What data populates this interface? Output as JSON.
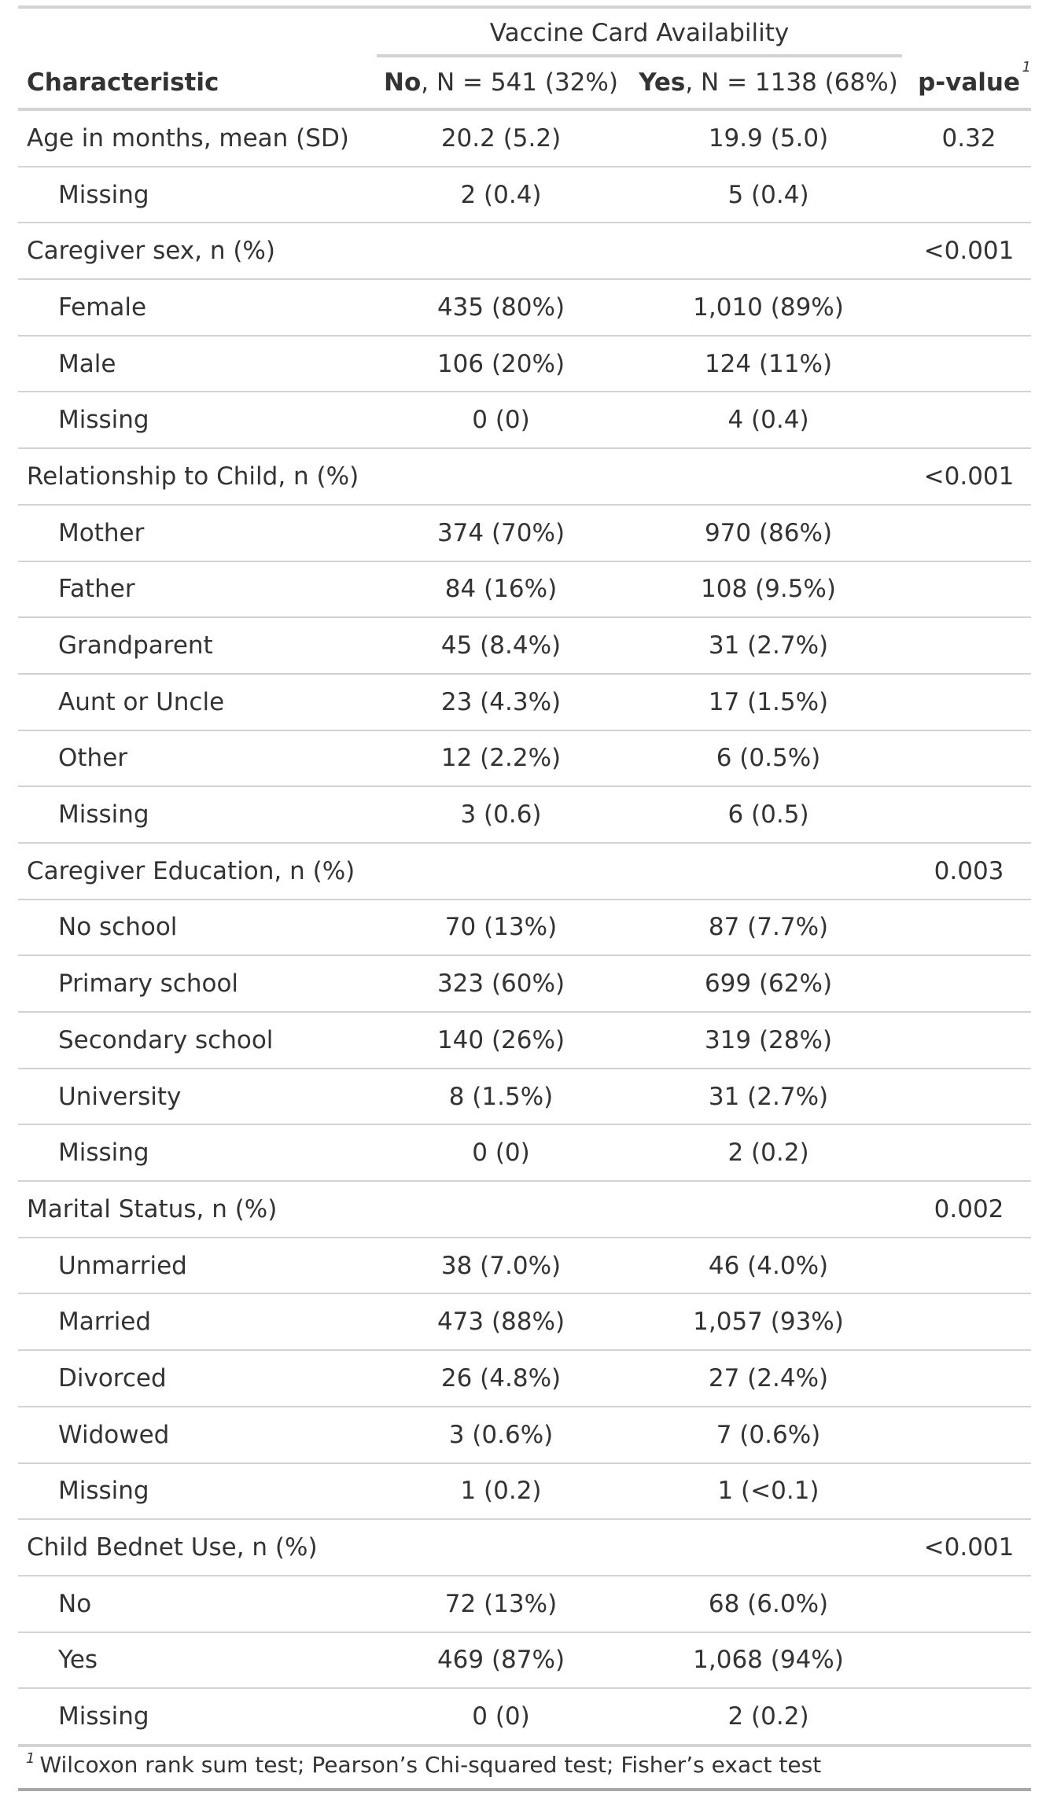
{
  "table": {
    "spanner": "Vaccine Card Availability",
    "headers": {
      "characteristic": "Characteristic",
      "no_bold": "No",
      "no_rest": ", N = 541 (32%)",
      "yes_bold": "Yes",
      "yes_rest": ", N = 1138 (68%)",
      "pvalue": "p-value",
      "pvalue_mark": "1"
    },
    "rows": [
      {
        "label": "Age in months, mean (SD)",
        "no": "20.2 (5.2)",
        "yes": "19.9 (5.0)",
        "p": "0.32",
        "level": "header"
      },
      {
        "label": "Missing",
        "no": "2 (0.4)",
        "yes": "5 (0.4)",
        "p": "",
        "level": "sub"
      },
      {
        "label": "Caregiver sex, n (%)",
        "no": "",
        "yes": "",
        "p": "<0.001",
        "level": "header"
      },
      {
        "label": "Female",
        "no": "435 (80%)",
        "yes": "1,010 (89%)",
        "p": "",
        "level": "sub"
      },
      {
        "label": "Male",
        "no": "106 (20%)",
        "yes": "124 (11%)",
        "p": "",
        "level": "sub"
      },
      {
        "label": "Missing",
        "no": "0 (0)",
        "yes": "4 (0.4)",
        "p": "",
        "level": "sub"
      },
      {
        "label": "Relationship to Child, n (%)",
        "no": "",
        "yes": "",
        "p": "<0.001",
        "level": "header"
      },
      {
        "label": "Mother",
        "no": "374 (70%)",
        "yes": "970 (86%)",
        "p": "",
        "level": "sub"
      },
      {
        "label": "Father",
        "no": "84 (16%)",
        "yes": "108 (9.5%)",
        "p": "",
        "level": "sub"
      },
      {
        "label": "Grandparent",
        "no": "45 (8.4%)",
        "yes": "31 (2.7%)",
        "p": "",
        "level": "sub"
      },
      {
        "label": "Aunt or Uncle",
        "no": "23 (4.3%)",
        "yes": "17 (1.5%)",
        "p": "",
        "level": "sub"
      },
      {
        "label": "Other",
        "no": "12 (2.2%)",
        "yes": "6 (0.5%)",
        "p": "",
        "level": "sub"
      },
      {
        "label": "Missing",
        "no": "3 (0.6)",
        "yes": "6 (0.5)",
        "p": "",
        "level": "sub"
      },
      {
        "label": "Caregiver Education, n (%)",
        "no": "",
        "yes": "",
        "p": "0.003",
        "level": "header"
      },
      {
        "label": "No school",
        "no": "70 (13%)",
        "yes": "87 (7.7%)",
        "p": "",
        "level": "sub"
      },
      {
        "label": "Primary school",
        "no": "323 (60%)",
        "yes": "699 (62%)",
        "p": "",
        "level": "sub"
      },
      {
        "label": "Secondary school",
        "no": "140 (26%)",
        "yes": "319 (28%)",
        "p": "",
        "level": "sub"
      },
      {
        "label": "University",
        "no": "8 (1.5%)",
        "yes": "31 (2.7%)",
        "p": "",
        "level": "sub"
      },
      {
        "label": "Missing",
        "no": "0 (0)",
        "yes": "2 (0.2)",
        "p": "",
        "level": "sub"
      },
      {
        "label": "Marital Status, n (%)",
        "no": "",
        "yes": "",
        "p": "0.002",
        "level": "header"
      },
      {
        "label": "Unmarried",
        "no": "38 (7.0%)",
        "yes": "46 (4.0%)",
        "p": "",
        "level": "sub"
      },
      {
        "label": "Married",
        "no": "473 (88%)",
        "yes": "1,057 (93%)",
        "p": "",
        "level": "sub"
      },
      {
        "label": "Divorced",
        "no": "26 (4.8%)",
        "yes": "27 (2.4%)",
        "p": "",
        "level": "sub"
      },
      {
        "label": "Widowed",
        "no": "3 (0.6%)",
        "yes": "7 (0.6%)",
        "p": "",
        "level": "sub"
      },
      {
        "label": "Missing",
        "no": "1 (0.2)",
        "yes": "1 (<0.1)",
        "p": "",
        "level": "sub"
      },
      {
        "label": "Child Bednet Use, n (%)",
        "no": "",
        "yes": "",
        "p": "<0.001",
        "level": "header"
      },
      {
        "label": "No",
        "no": "72 (13%)",
        "yes": "68 (6.0%)",
        "p": "",
        "level": "sub"
      },
      {
        "label": "Yes",
        "no": "469 (87%)",
        "yes": "1,068 (94%)",
        "p": "",
        "level": "sub"
      },
      {
        "label": "Missing",
        "no": "0 (0)",
        "yes": "2 (0.2)",
        "p": "",
        "level": "sub"
      }
    ],
    "footnote": {
      "mark": "1",
      "text": "Wilcoxon rank sum test; Pearson’s Chi-squared test; Fisher’s exact test"
    }
  }
}
